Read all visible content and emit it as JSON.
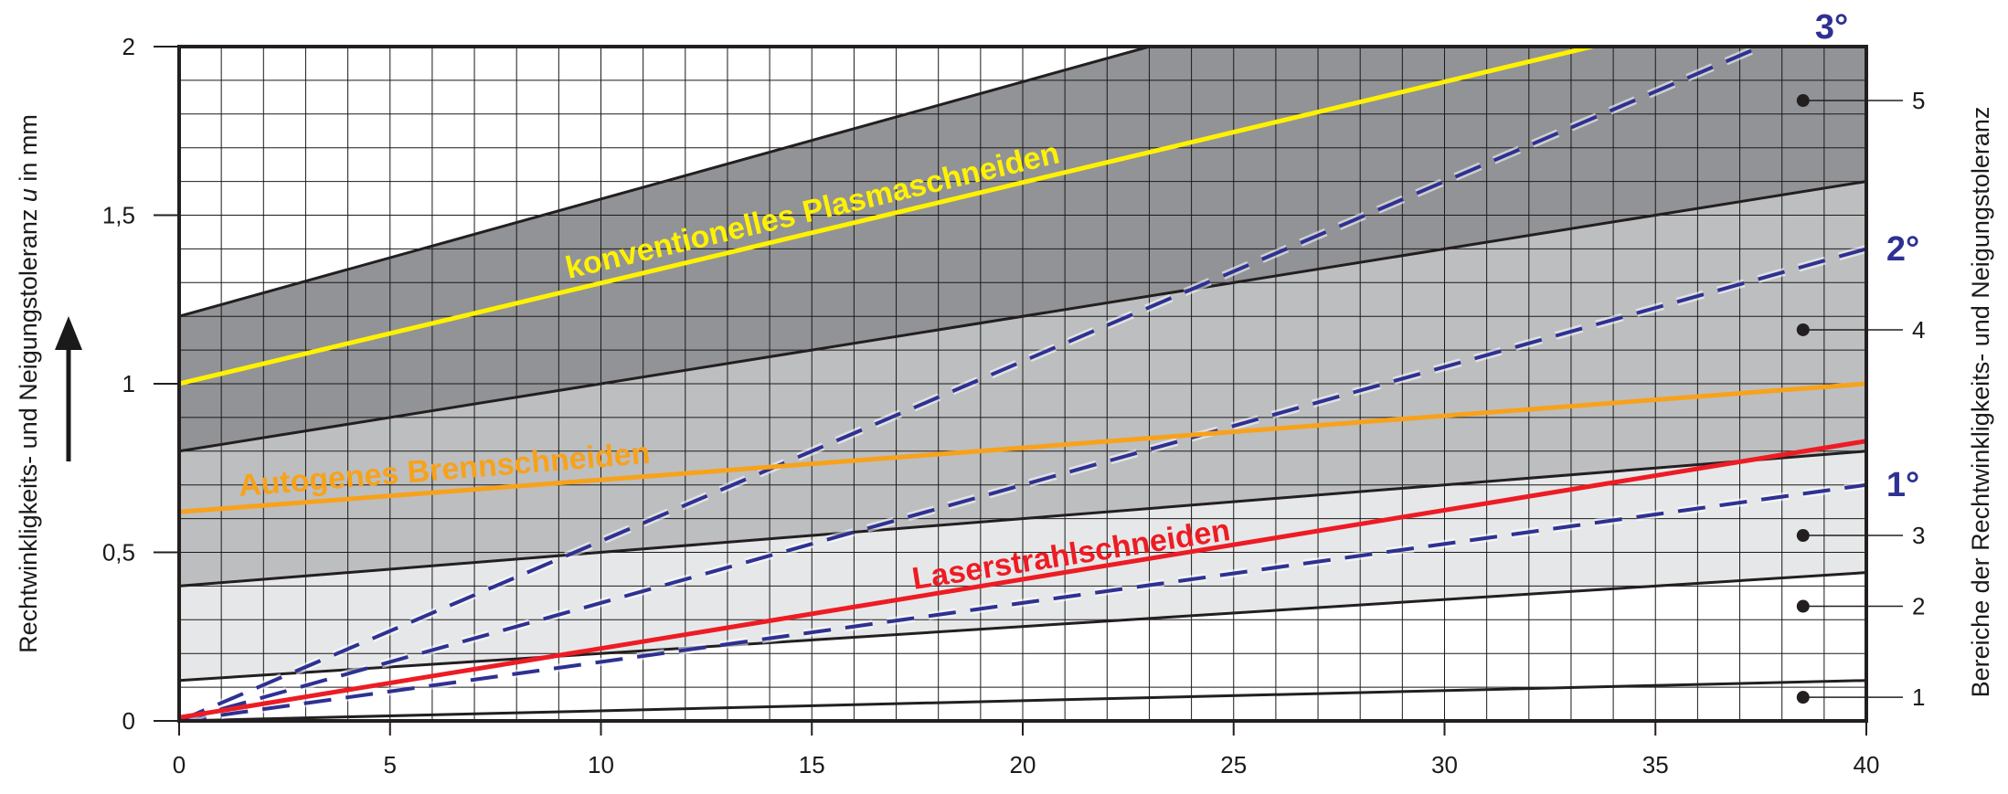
{
  "chart_data": {
    "type": "line",
    "xlim": [
      0,
      40
    ],
    "ylim": [
      0,
      2
    ],
    "x_ticks": [
      0,
      5,
      10,
      15,
      20,
      25,
      30,
      35,
      40
    ],
    "y_ticks": [
      {
        "value": 0,
        "label": "0"
      },
      {
        "value": 0.5,
        "label": "0,5"
      },
      {
        "value": 1,
        "label": "1"
      },
      {
        "value": 1.5,
        "label": "1,5"
      },
      {
        "value": 2,
        "label": "2"
      }
    ],
    "ylabel": "Rechtwinkligkeits- und Neigungstoleranz u in mm",
    "ylabel_parts": [
      "Rechtwinkligkeits- und Neigungstoleranz ",
      "u",
      " in mm"
    ],
    "right_axis_label": "Bereiche der Rechtwinkligkeits- und Neigungstoleranz",
    "grid": true,
    "band_boundaries": [
      {
        "name": "b0",
        "points": [
          [
            0,
            0
          ],
          [
            40,
            0.12
          ]
        ]
      },
      {
        "name": "b1",
        "points": [
          [
            0,
            0.12
          ],
          [
            40,
            0.44
          ]
        ]
      },
      {
        "name": "b2",
        "points": [
          [
            0,
            0.4
          ],
          [
            40,
            0.8
          ]
        ]
      },
      {
        "name": "b3",
        "points": [
          [
            0,
            0.8
          ],
          [
            40,
            1.6
          ]
        ]
      },
      {
        "name": "b4",
        "points": [
          [
            0,
            1.2
          ],
          [
            23,
            2.0
          ]
        ]
      }
    ],
    "bands": [
      {
        "label": "1",
        "y_at_zone_marker": 0.07,
        "color": "#ffffff"
      },
      {
        "label": "2",
        "y_at_zone_marker": 0.34,
        "color": "#e6e7e8"
      },
      {
        "label": "3",
        "y_at_zone_marker": 0.55,
        "color": "#bdbec0"
      },
      {
        "label": "4",
        "y_at_zone_marker": 1.16,
        "color": "#929396"
      },
      {
        "label": "5",
        "y_at_zone_marker": 1.84,
        "color": "#6d6e71"
      }
    ],
    "zone_marker_x": 38.5,
    "series": [
      {
        "name": "konventionelles Plasmaschneiden",
        "points": [
          [
            0,
            1.0
          ],
          [
            33.5,
            2.0
          ]
        ],
        "color": "#fff200"
      },
      {
        "name": "Autogenes Brennschneiden",
        "points": [
          [
            0,
            0.62
          ],
          [
            40,
            1.0
          ]
        ],
        "color": "#f7a21b"
      },
      {
        "name": "Laserstrahlschneiden",
        "points": [
          [
            0,
            0.01
          ],
          [
            40,
            0.83
          ]
        ],
        "color": "#ed1c24"
      }
    ],
    "angle_lines": [
      {
        "label": "1°",
        "points": [
          [
            0,
            0
          ],
          [
            40,
            0.7
          ]
        ],
        "color": "#2e3192"
      },
      {
        "label": "2°",
        "points": [
          [
            0,
            0
          ],
          [
            40,
            1.4
          ]
        ],
        "color": "#2e3192"
      },
      {
        "label": "3°",
        "points": [
          [
            0,
            0
          ],
          [
            37.5,
            2.0
          ]
        ],
        "color": "#2e3192"
      }
    ]
  }
}
